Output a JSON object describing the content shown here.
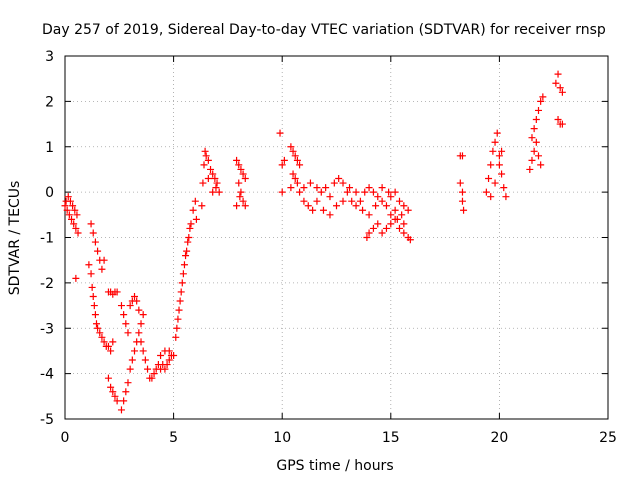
{
  "chart_data": {
    "type": "scatter",
    "title": "Day 257 of 2019, Sidereal Day-to-day VTEC variation (SDTVAR) for receiver rnsp",
    "xlabel": "GPS time / hours",
    "ylabel": "SDTVAR / TECUs",
    "xlim": [
      0,
      25
    ],
    "ylim": [
      -5,
      3
    ],
    "xticks": [
      "0",
      "5",
      "10",
      "15",
      "20",
      "25"
    ],
    "yticks": [
      "-5",
      "-4",
      "-3",
      "-2",
      "-1",
      "0",
      "1",
      "2",
      "3"
    ],
    "grid": true,
    "marker": "+",
    "color": "#ff0000",
    "series": [
      {
        "name": "SDTVAR",
        "points": [
          [
            0.0,
            -0.3
          ],
          [
            0.05,
            -0.2
          ],
          [
            0.1,
            -0.4
          ],
          [
            0.15,
            -0.1
          ],
          [
            0.2,
            -0.5
          ],
          [
            0.25,
            -0.2
          ],
          [
            0.3,
            -0.6
          ],
          [
            0.35,
            -0.3
          ],
          [
            0.4,
            -0.7
          ],
          [
            0.45,
            -0.4
          ],
          [
            0.5,
            -0.8
          ],
          [
            0.55,
            -0.5
          ],
          [
            0.6,
            -0.9
          ],
          [
            0.5,
            -1.9
          ],
          [
            1.2,
            -0.7
          ],
          [
            1.3,
            -0.9
          ],
          [
            1.4,
            -1.1
          ],
          [
            1.5,
            -1.3
          ],
          [
            1.6,
            -1.5
          ],
          [
            1.7,
            -1.7
          ],
          [
            1.8,
            -1.5
          ],
          [
            1.1,
            -1.6
          ],
          [
            1.2,
            -1.8
          ],
          [
            1.25,
            -2.1
          ],
          [
            1.3,
            -2.3
          ],
          [
            1.35,
            -2.5
          ],
          [
            1.4,
            -2.7
          ],
          [
            1.45,
            -2.9
          ],
          [
            1.5,
            -3.0
          ],
          [
            1.6,
            -3.1
          ],
          [
            1.7,
            -3.2
          ],
          [
            1.8,
            -3.3
          ],
          [
            1.9,
            -3.4
          ],
          [
            2.0,
            -3.4
          ],
          [
            2.1,
            -3.5
          ],
          [
            2.2,
            -3.3
          ],
          [
            2.0,
            -2.2
          ],
          [
            2.1,
            -2.2
          ],
          [
            2.2,
            -2.25
          ],
          [
            2.3,
            -2.2
          ],
          [
            2.4,
            -2.2
          ],
          [
            2.0,
            -4.1
          ],
          [
            2.1,
            -4.3
          ],
          [
            2.2,
            -4.4
          ],
          [
            2.3,
            -4.5
          ],
          [
            2.4,
            -4.6
          ],
          [
            2.6,
            -4.8
          ],
          [
            2.7,
            -4.6
          ],
          [
            2.8,
            -4.4
          ],
          [
            2.9,
            -4.2
          ],
          [
            3.0,
            -3.9
          ],
          [
            3.1,
            -3.7
          ],
          [
            3.2,
            -3.5
          ],
          [
            3.3,
            -3.3
          ],
          [
            3.4,
            -3.1
          ],
          [
            3.5,
            -2.9
          ],
          [
            3.6,
            -2.7
          ],
          [
            2.6,
            -2.5
          ],
          [
            2.7,
            -2.7
          ],
          [
            2.8,
            -2.9
          ],
          [
            2.9,
            -3.1
          ],
          [
            3.0,
            -2.5
          ],
          [
            3.1,
            -2.4
          ],
          [
            3.2,
            -2.3
          ],
          [
            3.3,
            -2.4
          ],
          [
            3.4,
            -2.6
          ],
          [
            3.5,
            -3.3
          ],
          [
            3.6,
            -3.5
          ],
          [
            3.7,
            -3.7
          ],
          [
            3.8,
            -3.9
          ],
          [
            3.9,
            -4.1
          ],
          [
            4.0,
            -4.1
          ],
          [
            4.1,
            -4.0
          ],
          [
            4.2,
            -3.9
          ],
          [
            4.3,
            -3.8
          ],
          [
            4.4,
            -3.9
          ],
          [
            4.5,
            -3.8
          ],
          [
            4.6,
            -3.9
          ],
          [
            4.7,
            -3.8
          ],
          [
            4.8,
            -3.7
          ],
          [
            4.9,
            -3.6
          ],
          [
            4.4,
            -3.6
          ],
          [
            4.6,
            -3.5
          ],
          [
            4.8,
            -3.5
          ],
          [
            5.0,
            -3.6
          ],
          [
            5.1,
            -3.2
          ],
          [
            5.2,
            -2.8
          ],
          [
            5.3,
            -2.4
          ],
          [
            5.4,
            -2.0
          ],
          [
            5.5,
            -1.6
          ],
          [
            5.6,
            -1.3
          ],
          [
            5.7,
            -1.0
          ],
          [
            5.8,
            -0.7
          ],
          [
            5.9,
            -0.4
          ],
          [
            6.0,
            -0.2
          ],
          [
            6.05,
            -0.6
          ],
          [
            5.15,
            -3.0
          ],
          [
            5.25,
            -2.6
          ],
          [
            5.35,
            -2.2
          ],
          [
            5.45,
            -1.8
          ],
          [
            5.55,
            -1.4
          ],
          [
            5.65,
            -1.1
          ],
          [
            5.75,
            -0.8
          ],
          [
            6.3,
            -0.3
          ],
          [
            6.35,
            0.2
          ],
          [
            6.4,
            0.6
          ],
          [
            6.45,
            0.9
          ],
          [
            6.5,
            0.8
          ],
          [
            6.6,
            0.7
          ],
          [
            6.7,
            0.5
          ],
          [
            6.8,
            0.4
          ],
          [
            6.9,
            0.3
          ],
          [
            7.0,
            0.2
          ],
          [
            7.1,
            0.0
          ],
          [
            6.6,
            0.3
          ],
          [
            6.8,
            0.0
          ],
          [
            6.95,
            0.1
          ],
          [
            7.9,
            0.7
          ],
          [
            8.0,
            0.6
          ],
          [
            8.1,
            0.5
          ],
          [
            8.2,
            0.4
          ],
          [
            8.3,
            0.3
          ],
          [
            8.0,
            0.2
          ],
          [
            8.1,
            0.0
          ],
          [
            8.2,
            -0.2
          ],
          [
            8.3,
            -0.3
          ],
          [
            7.9,
            -0.3
          ],
          [
            8.05,
            -0.1
          ],
          [
            9.9,
            1.3
          ],
          [
            10.0,
            0.6
          ],
          [
            10.1,
            0.7
          ],
          [
            10.0,
            0.0
          ],
          [
            10.4,
            1.0
          ],
          [
            10.5,
            0.9
          ],
          [
            10.6,
            0.8
          ],
          [
            10.7,
            0.7
          ],
          [
            10.8,
            0.6
          ],
          [
            10.5,
            0.4
          ],
          [
            10.6,
            0.3
          ],
          [
            10.7,
            0.2
          ],
          [
            10.4,
            0.1
          ],
          [
            10.8,
            0.0
          ],
          [
            11.0,
            -0.2
          ],
          [
            11.2,
            -0.3
          ],
          [
            11.4,
            -0.4
          ],
          [
            11.6,
            -0.2
          ],
          [
            11.8,
            0.0
          ],
          [
            12.0,
            0.1
          ],
          [
            12.2,
            -0.1
          ],
          [
            12.4,
            0.2
          ],
          [
            12.6,
            0.3
          ],
          [
            12.8,
            0.2
          ],
          [
            13.0,
            0.0
          ],
          [
            13.2,
            -0.2
          ],
          [
            13.4,
            -0.3
          ],
          [
            13.6,
            -0.2
          ],
          [
            13.8,
            0.0
          ],
          [
            14.0,
            0.1
          ],
          [
            14.2,
            0.0
          ],
          [
            14.4,
            -0.1
          ],
          [
            14.6,
            -0.2
          ],
          [
            14.8,
            -0.3
          ],
          [
            15.0,
            -0.1
          ],
          [
            15.2,
            0.0
          ],
          [
            15.4,
            -0.2
          ],
          [
            15.6,
            -0.3
          ],
          [
            15.8,
            -0.4
          ],
          [
            11.0,
            0.1
          ],
          [
            11.3,
            0.2
          ],
          [
            11.6,
            0.1
          ],
          [
            11.9,
            -0.4
          ],
          [
            12.2,
            -0.5
          ],
          [
            12.5,
            -0.3
          ],
          [
            12.8,
            -0.2
          ],
          [
            13.1,
            0.1
          ],
          [
            13.4,
            0.0
          ],
          [
            13.7,
            -0.4
          ],
          [
            14.0,
            -0.5
          ],
          [
            14.3,
            -0.3
          ],
          [
            14.6,
            0.1
          ],
          [
            14.9,
            0.0
          ],
          [
            15.2,
            -0.4
          ],
          [
            15.5,
            -0.5
          ],
          [
            13.9,
            -1.0
          ],
          [
            14.0,
            -0.9
          ],
          [
            14.2,
            -0.8
          ],
          [
            14.4,
            -0.7
          ],
          [
            14.6,
            -0.9
          ],
          [
            14.8,
            -0.8
          ],
          [
            15.0,
            -0.7
          ],
          [
            15.2,
            -0.6
          ],
          [
            15.4,
            -0.8
          ],
          [
            15.6,
            -0.9
          ],
          [
            15.8,
            -1.0
          ],
          [
            15.9,
            -1.05
          ],
          [
            15.0,
            -0.5
          ],
          [
            15.3,
            -0.6
          ],
          [
            15.6,
            -0.7
          ],
          [
            18.2,
            0.8
          ],
          [
            18.3,
            0.8
          ],
          [
            18.2,
            0.2
          ],
          [
            18.3,
            0.0
          ],
          [
            18.3,
            -0.2
          ],
          [
            18.35,
            -0.4
          ],
          [
            19.4,
            0.0
          ],
          [
            19.5,
            0.3
          ],
          [
            19.6,
            0.6
          ],
          [
            19.7,
            0.9
          ],
          [
            19.8,
            1.1
          ],
          [
            19.9,
            1.3
          ],
          [
            20.0,
            0.8
          ],
          [
            20.1,
            0.4
          ],
          [
            20.2,
            0.1
          ],
          [
            20.3,
            -0.1
          ],
          [
            19.6,
            -0.1
          ],
          [
            19.8,
            0.2
          ],
          [
            20.0,
            0.6
          ],
          [
            20.1,
            0.9
          ],
          [
            21.4,
            0.5
          ],
          [
            21.5,
            0.7
          ],
          [
            21.6,
            0.9
          ],
          [
            21.7,
            1.1
          ],
          [
            21.8,
            0.8
          ],
          [
            21.9,
            0.6
          ],
          [
            21.5,
            1.2
          ],
          [
            21.6,
            1.4
          ],
          [
            21.7,
            1.6
          ],
          [
            21.8,
            1.8
          ],
          [
            21.9,
            2.0
          ],
          [
            22.0,
            2.1
          ],
          [
            22.6,
            2.4
          ],
          [
            22.7,
            2.6
          ],
          [
            22.8,
            2.3
          ],
          [
            22.9,
            2.2
          ],
          [
            22.7,
            1.6
          ],
          [
            22.8,
            1.5
          ],
          [
            22.9,
            1.5
          ]
        ]
      }
    ]
  }
}
